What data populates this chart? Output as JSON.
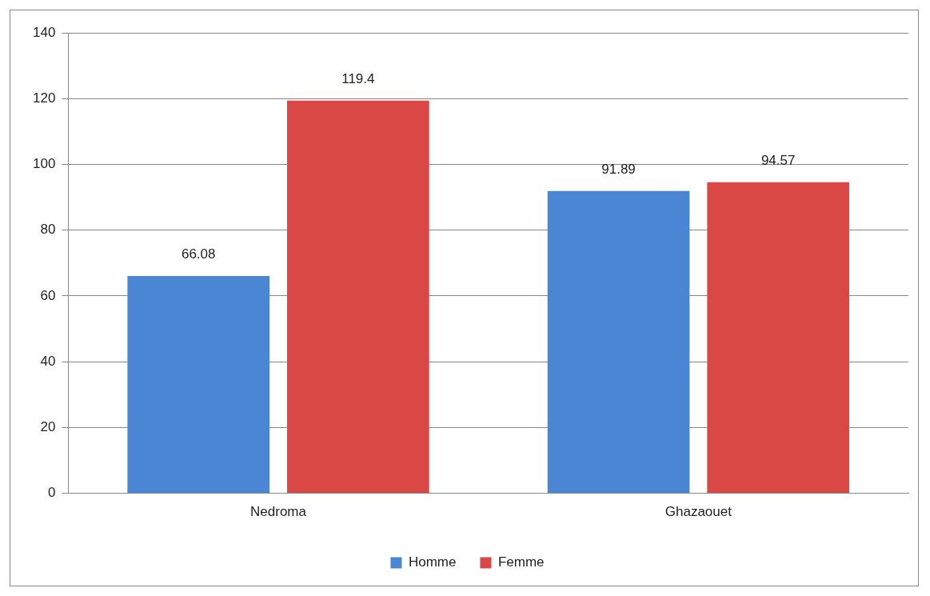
{
  "chart_data": {
    "type": "bar",
    "categories": [
      "Nedroma",
      "Ghazaouet"
    ],
    "series": [
      {
        "name": "Homme",
        "color": "#4a86d4",
        "values": [
          66.08,
          91.89
        ]
      },
      {
        "name": "Femme",
        "color": "#d94845",
        "values": [
          119.4,
          94.57
        ]
      }
    ],
    "ylim": [
      0,
      140
    ],
    "yticks": [
      0,
      20,
      40,
      60,
      80,
      100,
      120,
      140
    ],
    "grid": "y",
    "legend": "bottom",
    "data_labels": true
  }
}
